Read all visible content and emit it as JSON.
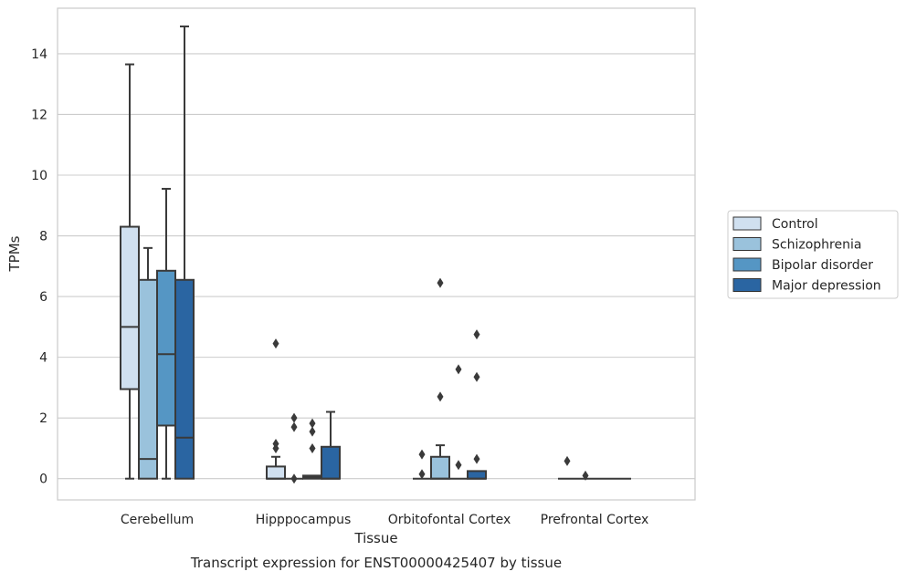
{
  "chart_data": {
    "type": "boxplot",
    "caption": "Transcript expression for ENST00000425407 by tissue",
    "xlabel": "Tissue",
    "ylabel": "TPMs",
    "ylim": [
      -0.7,
      15.5
    ],
    "yticks": [
      0,
      2,
      4,
      6,
      8,
      10,
      12,
      14
    ],
    "grid": "horizontal",
    "legend_position": "right",
    "categories": [
      "Cerebellum",
      "Hipppocampus",
      "Orbitofontal Cortex",
      "Prefrontal Cortex"
    ],
    "series": [
      {
        "name": "Control",
        "color": "#d0e0f0",
        "boxes": [
          {
            "whislo": 0,
            "q1": 2.95,
            "med": 5.0,
            "q3": 8.3,
            "whishi": 13.65,
            "fliers": []
          },
          {
            "whislo": 0,
            "q1": 0.0,
            "med": 0.0,
            "q3": 0.4,
            "whishi": 0.72,
            "fliers": [
              4.45,
              1.15,
              1.0
            ]
          },
          {
            "whislo": 0,
            "q1": 0.0,
            "med": 0.0,
            "q3": 0.0,
            "whishi": 0.0,
            "fliers": [
              0.8,
              0.15
            ]
          },
          {
            "whislo": 0,
            "q1": 0.0,
            "med": 0.0,
            "q3": 0.0,
            "whishi": 0.0,
            "fliers": [
              0.58
            ]
          }
        ]
      },
      {
        "name": "Schizophrenia",
        "color": "#9ac2dc",
        "boxes": [
          {
            "whislo": 0,
            "q1": 0.0,
            "med": 0.65,
            "q3": 6.55,
            "whishi": 7.6,
            "fliers": []
          },
          {
            "whislo": 0,
            "q1": 0.0,
            "med": 0.0,
            "q3": 0.0,
            "whishi": 0.0,
            "fliers": [
              2.0,
              1.7,
              0.0
            ]
          },
          {
            "whislo": 0,
            "q1": 0.0,
            "med": 0.0,
            "q3": 0.72,
            "whishi": 1.1,
            "fliers": [
              6.45,
              2.7
            ]
          },
          {
            "whislo": 0,
            "q1": 0.0,
            "med": 0.0,
            "q3": 0.0,
            "whishi": 0.0,
            "fliers": [
              0.1
            ]
          }
        ]
      },
      {
        "name": "Bipolar disorder",
        "color": "#5596c4",
        "boxes": [
          {
            "whislo": 0,
            "q1": 1.75,
            "med": 4.1,
            "q3": 6.85,
            "whishi": 9.55,
            "fliers": []
          },
          {
            "whislo": 0,
            "q1": 0.0,
            "med": 0.05,
            "q3": 0.1,
            "whishi": 0.1,
            "fliers": [
              1.82,
              1.55,
              1.0
            ]
          },
          {
            "whislo": 0,
            "q1": 0.0,
            "med": 0.0,
            "q3": 0.0,
            "whishi": 0.0,
            "fliers": [
              3.6,
              0.45
            ]
          },
          {
            "whislo": 0,
            "q1": 0.0,
            "med": 0.0,
            "q3": 0.0,
            "whishi": 0.0,
            "fliers": []
          }
        ]
      },
      {
        "name": "Major depression",
        "color": "#2a65a2",
        "boxes": [
          {
            "whislo": 0,
            "q1": 0.0,
            "med": 1.35,
            "q3": 6.55,
            "whishi": 14.9,
            "fliers": []
          },
          {
            "whislo": 0,
            "q1": 0.0,
            "med": 0.0,
            "q3": 1.05,
            "whishi": 2.2,
            "fliers": []
          },
          {
            "whislo": 0,
            "q1": 0.0,
            "med": 0.0,
            "q3": 0.25,
            "whishi": 0.25,
            "fliers": [
              4.75,
              3.35,
              0.65
            ]
          },
          {
            "whislo": 0,
            "q1": 0.0,
            "med": 0.0,
            "q3": 0.0,
            "whishi": 0.0,
            "fliers": []
          }
        ]
      }
    ]
  }
}
